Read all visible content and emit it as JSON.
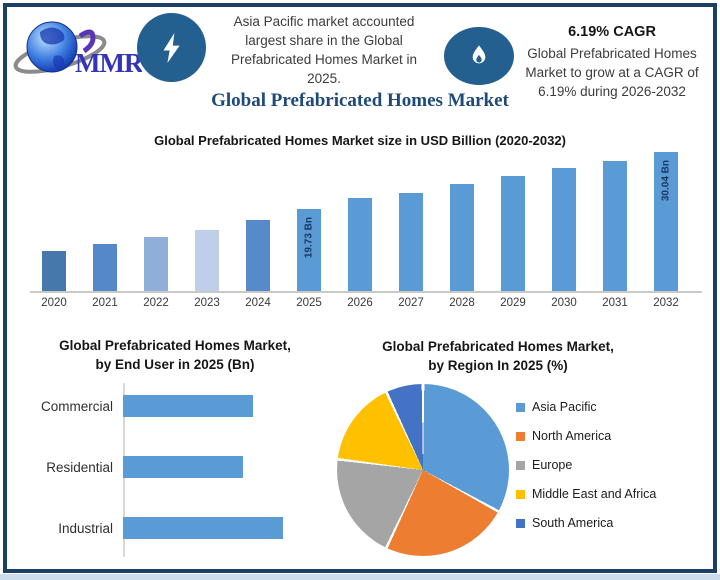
{
  "header": {
    "logo_text": "MMR",
    "highlight": {
      "lines": [
        "Asia Pacific market accounted",
        "largest share in the Global",
        "Prefabricated Homes Market in",
        "2025."
      ]
    },
    "cagr": {
      "title": "6.19% CAGR",
      "lines": [
        "Global Prefabricated Homes",
        "Market to grow at a CAGR of",
        "6.19% during 2026-2032"
      ]
    }
  },
  "main_title": "Global Prefabricated Homes Market",
  "colors": {
    "accent_navy": "#24608f",
    "border_navy": "#1c3f66",
    "bar_blue": "#5b9bd5",
    "title_blue": "#1e4a7a",
    "bar_label_navy": "#17375e"
  },
  "chart_data": [
    {
      "type": "bar",
      "title": "Global Prefabricated Homes Market size in USD Billion (2020-2032)",
      "unit": "USD Billion",
      "categories": [
        "2020",
        "2021",
        "2022",
        "2023",
        "2024",
        "2025",
        "2026",
        "2027",
        "2028",
        "2029",
        "2030",
        "2031",
        "2032"
      ],
      "values": [
        12.1,
        13.4,
        14.6,
        16.0,
        17.8,
        19.73,
        21.7,
        22.6,
        24.2,
        25.7,
        27.2,
        28.4,
        30.04
      ],
      "data_labels": {
        "2025": "19.73 Bn",
        "2032": "30.04 Bn"
      },
      "bar_colors": [
        "#4678ab",
        "#5588c8",
        "#8fafd9",
        "#bdcfe9",
        "#568ac9",
        "#5b9bd5",
        "#5b9bd5",
        "#5b9bd5",
        "#5b9bd5",
        "#5b9bd5",
        "#5b9bd5",
        "#5b9bd5",
        "#5b9bd5"
      ],
      "ylim": [
        0,
        32
      ],
      "grid": false
    },
    {
      "type": "bar",
      "orientation": "horizontal",
      "title": "Global Prefabricated Homes Market, by End User in 2025 (Bn)",
      "title_lines": [
        "Global Prefabricated Homes Market,",
        "by End User in 2025 (Bn)"
      ],
      "categories": [
        "Commercial",
        "Residential",
        "Industrial"
      ],
      "values_relative": [
        0.81,
        0.75,
        1.0
      ],
      "bar_color": "#5b9bd5",
      "axis_values_shown": false
    },
    {
      "type": "pie",
      "title": "Global Prefabricated Homes Market, by Region In 2025 (%)",
      "title_lines": [
        "Global Prefabricated Homes  Market,",
        "by Region In 2025 (%)"
      ],
      "start_angle_deg": 0,
      "legend_position": "right",
      "slices": [
        {
          "label": "Asia Pacific",
          "percent": 33,
          "color": "#5b9bd5"
        },
        {
          "label": "North America",
          "percent": 24,
          "color": "#ed7d31"
        },
        {
          "label": "Europe",
          "percent": 20,
          "color": "#a5a5a5"
        },
        {
          "label": "Middle East and Africa",
          "percent": 16,
          "color": "#ffc000"
        },
        {
          "label": "South America",
          "percent": 7,
          "color": "#4472c4"
        }
      ]
    }
  ]
}
